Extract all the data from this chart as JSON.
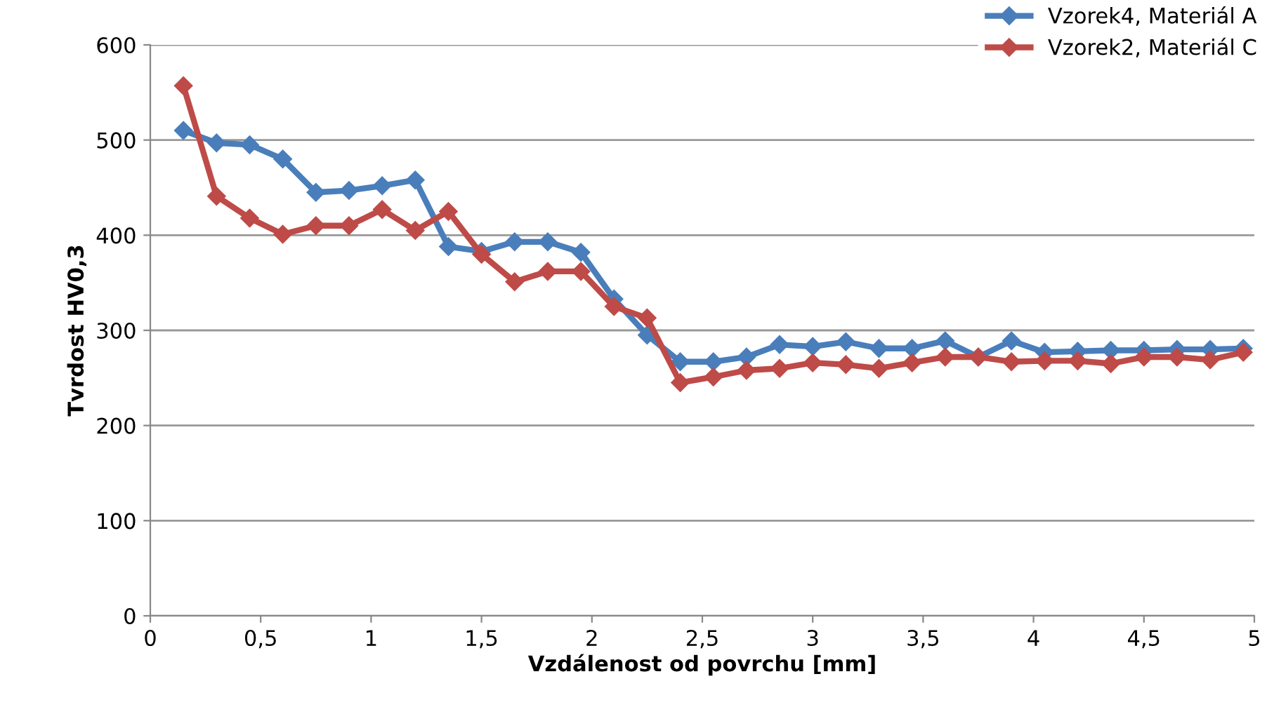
{
  "chart_data": {
    "type": "line",
    "xlabel": "Vzdálenost od povrchu [mm]",
    "ylabel": "Tvrdost HV0,3",
    "x": [
      0.15,
      0.3,
      0.45,
      0.6,
      0.75,
      0.9,
      1.05,
      1.2,
      1.35,
      1.5,
      1.65,
      1.8,
      1.95,
      2.1,
      2.25,
      2.4,
      2.55,
      2.7,
      2.85,
      3.0,
      3.15,
      3.3,
      3.45,
      3.6,
      3.75,
      3.9,
      4.05,
      4.2,
      4.35,
      4.5,
      4.65,
      4.8,
      4.95
    ],
    "series": [
      {
        "name": "Vzorek4, Materiál A",
        "color": "#4a7ebb",
        "values": [
          510,
          497,
          495,
          480,
          445,
          447,
          452,
          458,
          388,
          383,
          393,
          393,
          382,
          333,
          295,
          267,
          267,
          272,
          285,
          283,
          288,
          281,
          281,
          289,
          272,
          289,
          277,
          278,
          279,
          279,
          280,
          280,
          281
        ]
      },
      {
        "name": "Vzorek2, Materiál C",
        "color": "#be4b48",
        "values": [
          557,
          441,
          418,
          401,
          410,
          410,
          427,
          405,
          425,
          380,
          351,
          362,
          362,
          325,
          313,
          245,
          251,
          258,
          260,
          266,
          264,
          260,
          266,
          272,
          272,
          267,
          268,
          268,
          265,
          272,
          272,
          269,
          277
        ]
      }
    ],
    "xlim": [
      0,
      5
    ],
    "xticks": [
      0,
      {
        "value": 0.5,
        "label": "0,5"
      },
      1,
      {
        "value": 1.5,
        "label": "1,5"
      },
      2,
      {
        "value": 2.5,
        "label": "2,5"
      },
      3,
      {
        "value": 3.5,
        "label": "3,5"
      },
      4,
      {
        "value": 4.5,
        "label": "4,5"
      },
      5
    ],
    "ylim": [
      0,
      600
    ],
    "yticks": [
      0,
      100,
      200,
      300,
      400,
      500,
      600
    ],
    "grid": "y",
    "legend": "top right",
    "marker": "diamond",
    "line_style": "solid"
  }
}
